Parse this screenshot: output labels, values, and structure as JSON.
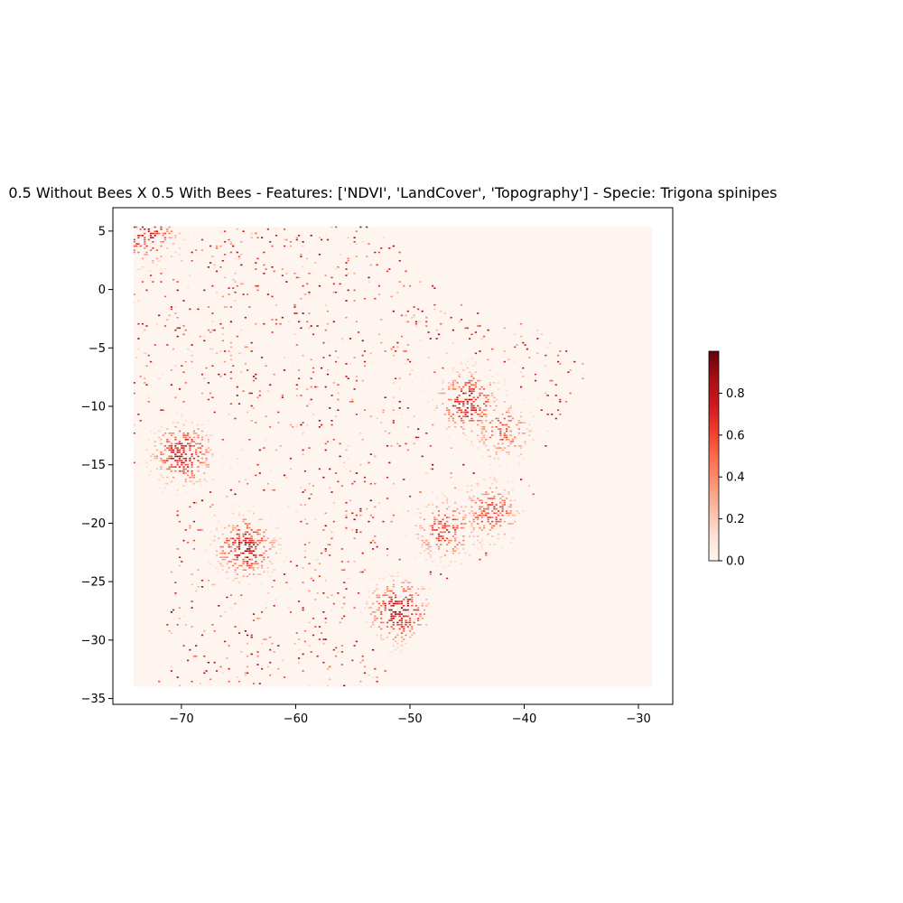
{
  "chart_data": {
    "type": "heatmap",
    "title": "0.5 Without Bees X 0.5 With Bees - Features: ['NDVI', 'LandCover', 'Topography'] - Specie: Trigona spinipes",
    "xlabel": "",
    "ylabel": "",
    "xlim": [
      -76,
      -27
    ],
    "ylim": [
      -35.5,
      7
    ],
    "x_ticks": [
      -70,
      -60,
      -50,
      -40,
      -30
    ],
    "x_tick_labels": [
      "−70",
      "−60",
      "−50",
      "−40",
      "−30"
    ],
    "y_ticks": [
      5,
      0,
      -5,
      -10,
      -15,
      -20,
      -25,
      -30,
      -35
    ],
    "y_tick_labels": [
      "5",
      "0",
      "−5",
      "−10",
      "−15",
      "−20",
      "−25",
      "−30",
      "−35"
    ],
    "data_extent": {
      "lon": [
        -74.2,
        -28.8
      ],
      "lat": [
        -34.0,
        5.4
      ]
    },
    "colorbar": {
      "colormap": "Reds",
      "range": [
        0,
        1
      ],
      "ticks": [
        0.0,
        0.2,
        0.4,
        0.6,
        0.8
      ],
      "tick_labels": [
        "0.0",
        "0.2",
        "0.4",
        "0.6",
        "0.8"
      ]
    },
    "hotspots": [
      {
        "lon": -51,
        "lat": -27.5,
        "value": 0.9
      },
      {
        "lon": -45,
        "lat": -9.5,
        "value": 0.85
      },
      {
        "lon": -64.5,
        "lat": -22,
        "value": 0.85
      },
      {
        "lon": -70,
        "lat": -14,
        "value": 0.85
      },
      {
        "lon": -47,
        "lat": -20.5,
        "value": 0.7
      },
      {
        "lon": -43,
        "lat": -19,
        "value": 0.65
      },
      {
        "lon": -42,
        "lat": -12,
        "value": 0.6
      },
      {
        "lon": -73,
        "lat": 5,
        "value": 0.8
      }
    ],
    "grid": false,
    "legend": "none"
  },
  "colors": {
    "background": "#fff5f0",
    "low": "#fcbba1",
    "mid": "#ef3b2c",
    "high": "#67000d"
  }
}
